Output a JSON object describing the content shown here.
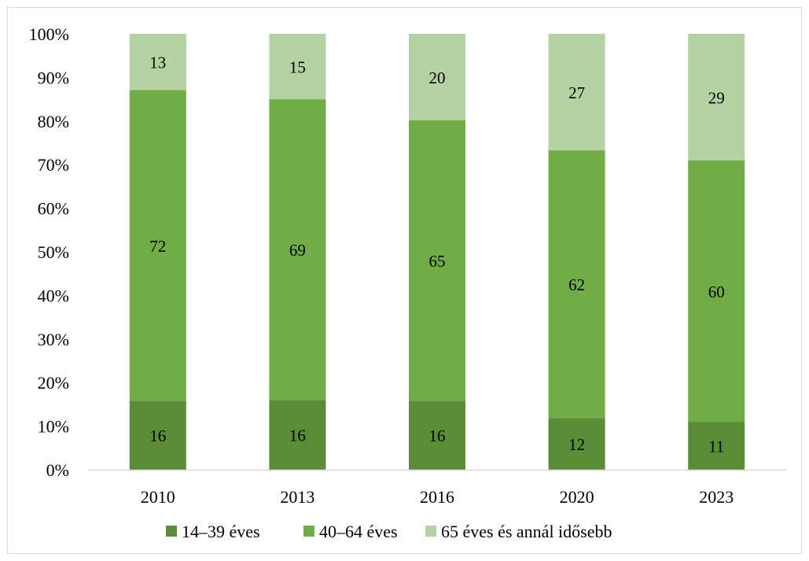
{
  "chart_data": {
    "type": "bar",
    "stacked": true,
    "percent_axis": true,
    "title": "",
    "xlabel": "",
    "ylabel": "",
    "categories": [
      "2010",
      "2013",
      "2016",
      "2020",
      "2023"
    ],
    "series": [
      {
        "name": "14–39 éves",
        "values": [
          16,
          16,
          16,
          12,
          11
        ],
        "color": "#5b8c36"
      },
      {
        "name": "40–64 éves",
        "values": [
          72,
          69,
          65,
          62,
          60
        ],
        "color": "#70ad47"
      },
      {
        "name": "65 éves és annál idősebb",
        "values": [
          13,
          15,
          20,
          27,
          29
        ],
        "color": "#b4d2a4"
      }
    ],
    "ylim": [
      0,
      100
    ],
    "yticks": [
      "0%",
      "10%",
      "20%",
      "30%",
      "40%",
      "50%",
      "60%",
      "70%",
      "80%",
      "90%",
      "100%"
    ],
    "grid": false,
    "legend_position": "bottom"
  }
}
